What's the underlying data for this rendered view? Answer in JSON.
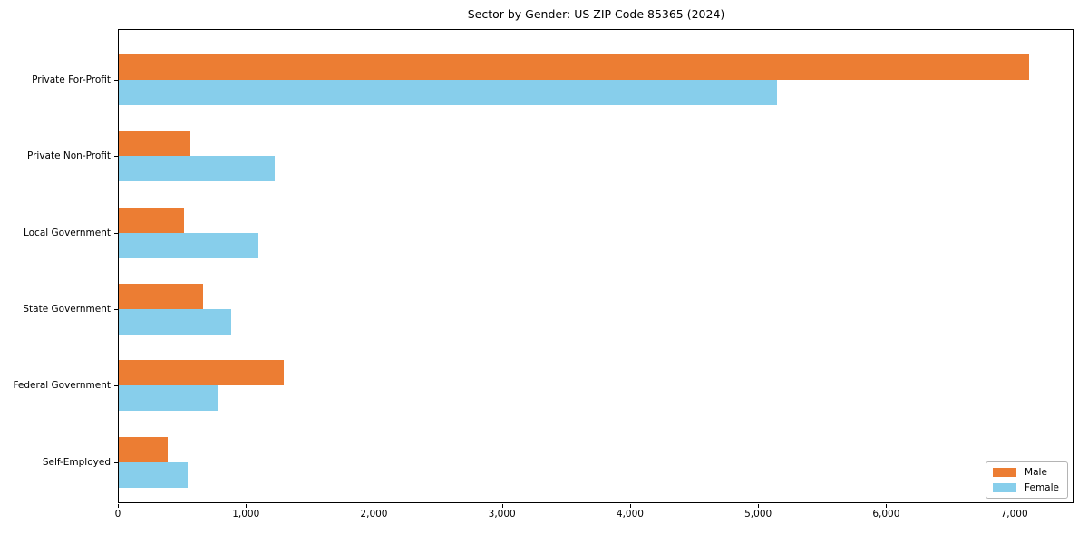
{
  "chart_data": {
    "type": "bar",
    "orientation": "horizontal",
    "title": "Sector by Gender: US ZIP Code 85365 (2024)",
    "categories": [
      "Private For-Profit",
      "Private Non-Profit",
      "Local Government",
      "State Government",
      "Federal Government",
      "Self-Employed"
    ],
    "series": [
      {
        "name": "Male",
        "color": "#ec7d33",
        "values": [
          7120,
          560,
          510,
          660,
          1290,
          380
        ]
      },
      {
        "name": "Female",
        "color": "#87ceeb",
        "values": [
          5150,
          1220,
          1090,
          880,
          770,
          540
        ]
      }
    ],
    "xlim": [
      0,
      7470
    ],
    "xticks": [
      0,
      1000,
      2000,
      3000,
      4000,
      5000,
      6000,
      7000
    ],
    "xtick_labels": [
      "0",
      "1,000",
      "2,000",
      "3,000",
      "4,000",
      "5,000",
      "6,000",
      "7,000"
    ],
    "xlabel": "",
    "ylabel": "",
    "grid": false,
    "legend_position": "lower right",
    "colors": {
      "male": "#ec7d33",
      "female": "#87ceeb",
      "axis": "#000000",
      "legend_border": "#b4b4b4"
    }
  }
}
